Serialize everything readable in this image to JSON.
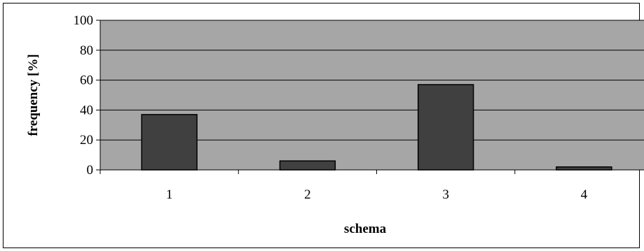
{
  "chart_data": {
    "type": "bar",
    "categories": [
      "1",
      "2",
      "3",
      "4"
    ],
    "values": [
      37,
      6,
      57,
      2
    ],
    "xlabel": "schema",
    "ylabel": "frequency [%]",
    "ylim": [
      0,
      100
    ],
    "yticks": [
      "0",
      "20",
      "40",
      "60",
      "80",
      "100"
    ],
    "grid": true,
    "legend": "none",
    "colors": {
      "plot_background": "#a6a6a6",
      "bar_fill": "#404040",
      "bar_stroke": "#000000",
      "gridline": "#000000"
    }
  }
}
